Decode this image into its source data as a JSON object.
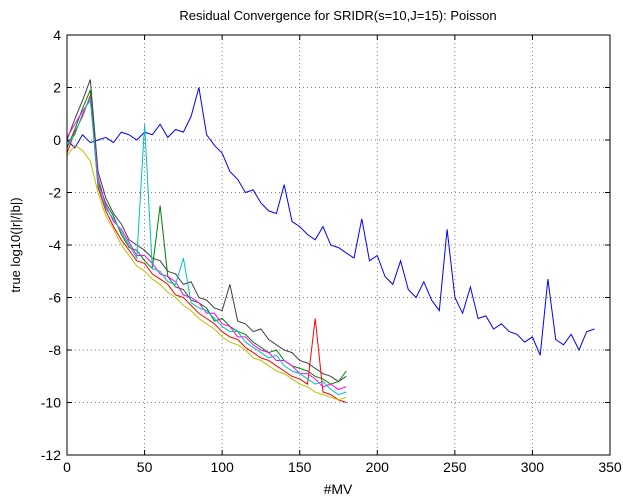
{
  "chart_data": {
    "type": "line",
    "title": "Residual Convergence for SRIDR(s=10,J=15): Poisson",
    "xlabel": "#MV",
    "ylabel": "true log10(|r|/|b|)",
    "xlim": [
      0,
      350
    ],
    "xticks": [
      0,
      50,
      100,
      150,
      200,
      250,
      300,
      350
    ],
    "ylim": [
      -12,
      4
    ],
    "yticks": [
      -12,
      -10,
      -8,
      -6,
      -4,
      -2,
      0,
      2,
      4
    ],
    "grid": true,
    "series": [
      {
        "color": "#0000ff",
        "x": [
          0,
          5,
          10,
          15,
          20,
          25,
          30,
          35,
          40,
          45,
          50,
          55,
          60,
          65,
          70,
          75,
          80,
          85,
          90,
          95,
          100,
          105,
          110,
          115,
          120,
          125,
          130,
          135,
          140,
          145,
          150,
          155,
          160,
          165,
          170,
          175,
          180,
          185,
          190,
          195,
          200,
          205,
          210,
          215,
          220,
          225,
          230,
          235,
          240,
          245,
          250,
          255,
          260,
          265,
          270,
          275,
          280,
          285,
          290,
          295,
          300,
          305,
          310,
          315,
          320,
          325,
          330,
          335,
          340
        ],
        "values": [
          0,
          -0.3,
          0.2,
          -0.1,
          0,
          0.1,
          -0.1,
          0.3,
          0.2,
          0,
          0.3,
          0.2,
          0.6,
          0.1,
          0.4,
          0.3,
          0.9,
          2.0,
          0.2,
          -0.2,
          -0.5,
          -1.2,
          -1.5,
          -2.0,
          -1.9,
          -2.4,
          -2.7,
          -2.8,
          -1.7,
          -3.1,
          -3.3,
          -3.6,
          -3.8,
          -3.3,
          -4.0,
          -4.1,
          -4.3,
          -4.5,
          -3.0,
          -4.6,
          -4.4,
          -5.2,
          -5.5,
          -4.6,
          -5.7,
          -6.0,
          -5.4,
          -6.1,
          -6.5,
          -3.4,
          -6.0,
          -6.6,
          -5.6,
          -6.8,
          -6.7,
          -7.2,
          -7.0,
          -7.3,
          -7.4,
          -7.7,
          -7.5,
          -8.2,
          -5.3,
          -7.6,
          -7.8,
          -7.4,
          -8.0,
          -7.3,
          -7.2
        ]
      },
      {
        "color": "#404040",
        "x": [
          0,
          5,
          10,
          15,
          20,
          25,
          30,
          35,
          40,
          45,
          50,
          55,
          60,
          65,
          70,
          75,
          80,
          85,
          90,
          95,
          100,
          105,
          110,
          115,
          120,
          125,
          130,
          135,
          140,
          145,
          150,
          155,
          160,
          165,
          170,
          175,
          180
        ],
        "values": [
          0,
          0.8,
          1.5,
          2.3,
          -1.2,
          -2.2,
          -2.8,
          -3.2,
          -3.8,
          -4.0,
          -4.2,
          -4.5,
          -4.6,
          -5.0,
          -5.1,
          -5.5,
          -5.4,
          -6.0,
          -6.1,
          -6.4,
          -6.5,
          -5.5,
          -6.9,
          -7.0,
          -7.3,
          -7.2,
          -7.6,
          -7.8,
          -8.0,
          -8.1,
          -8.4,
          -8.5,
          -8.7,
          -8.9,
          -9.0,
          -9.2,
          -9.0
        ]
      },
      {
        "color": "#008000",
        "x": [
          0,
          5,
          10,
          15,
          20,
          25,
          30,
          35,
          40,
          45,
          50,
          55,
          60,
          65,
          70,
          75,
          80,
          85,
          90,
          95,
          100,
          105,
          110,
          115,
          120,
          125,
          130,
          135,
          140,
          145,
          150,
          155,
          160,
          165,
          170,
          175,
          180
        ],
        "values": [
          -0.3,
          0.4,
          1.2,
          1.9,
          -1.6,
          -2.4,
          -2.9,
          -3.6,
          -4.1,
          -4.2,
          -4.6,
          -4.9,
          -2.5,
          -5.2,
          -5.6,
          -5.7,
          -6.1,
          -6.2,
          -6.4,
          -6.9,
          -6.8,
          -7.1,
          -7.3,
          -7.4,
          -7.7,
          -7.9,
          -8.1,
          -8.0,
          -8.4,
          -8.6,
          -8.7,
          -8.8,
          -9.0,
          -9.1,
          -9.3,
          -9.2,
          -8.8
        ]
      },
      {
        "color": "#ff0000",
        "x": [
          0,
          5,
          10,
          15,
          20,
          25,
          30,
          35,
          40,
          45,
          50,
          55,
          60,
          65,
          70,
          75,
          80,
          85,
          90,
          95,
          100,
          105,
          110,
          115,
          120,
          125,
          130,
          135,
          140,
          145,
          150,
          155,
          160,
          165,
          170,
          175,
          180
        ],
        "values": [
          -0.5,
          0.3,
          0.9,
          1.7,
          -1.8,
          -2.7,
          -3.3,
          -3.8,
          -4.2,
          -4.6,
          -4.7,
          -5.1,
          -5.3,
          -5.5,
          -5.9,
          -6.0,
          -6.3,
          -6.6,
          -6.8,
          -7.0,
          -7.3,
          -7.5,
          -7.6,
          -7.9,
          -8.1,
          -8.3,
          -8.4,
          -8.6,
          -8.8,
          -9.0,
          -9.1,
          -9.3,
          -6.8,
          -9.6,
          -9.7,
          -9.9,
          -10.0
        ]
      },
      {
        "color": "#ff00ff",
        "x": [
          0,
          5,
          10,
          15,
          20,
          25,
          30,
          35,
          40,
          45,
          50,
          55,
          60,
          65,
          70,
          75,
          80,
          85,
          90,
          95,
          100,
          105,
          110,
          115,
          120,
          125,
          130,
          135,
          140,
          145,
          150,
          155,
          160,
          165,
          170,
          175,
          180
        ],
        "values": [
          0.1,
          0.6,
          1.1,
          1.5,
          -1.4,
          -2.5,
          -3.1,
          -3.4,
          -3.9,
          -4.4,
          -4.4,
          -4.7,
          -5.1,
          -5.2,
          -5.4,
          -5.9,
          -6.0,
          -6.2,
          -6.6,
          -6.6,
          -7.0,
          -7.1,
          -7.5,
          -7.5,
          -7.8,
          -8.0,
          -8.1,
          -8.4,
          -8.4,
          -8.6,
          -8.9,
          -8.9,
          -9.1,
          -9.4,
          -9.3,
          -9.5,
          -9.4
        ]
      },
      {
        "color": "#00bfbf",
        "x": [
          0,
          5,
          10,
          15,
          20,
          25,
          30,
          35,
          40,
          45,
          50,
          55,
          60,
          65,
          70,
          75,
          80,
          85,
          90,
          95,
          100,
          105,
          110,
          115,
          120,
          125,
          130,
          135,
          140,
          145,
          150,
          155,
          160,
          165,
          170,
          175,
          180
        ],
        "values": [
          -0.2,
          0.2,
          1.0,
          1.6,
          -1.7,
          -2.6,
          -3.0,
          -3.5,
          -4.0,
          -4.5,
          0.6,
          -4.9,
          -5.0,
          -5.4,
          -5.5,
          -4.5,
          -6.2,
          -6.4,
          -6.5,
          -6.8,
          -7.1,
          -7.3,
          -7.3,
          -7.7,
          -7.9,
          -8.1,
          -8.3,
          -8.2,
          -8.6,
          -8.8,
          -8.9,
          -9.1,
          -9.3,
          -9.2,
          -9.5,
          -9.7,
          -9.6
        ]
      },
      {
        "color": "#bfbf00",
        "x": [
          0,
          5,
          10,
          15,
          20,
          25,
          30,
          35,
          40,
          45,
          50,
          55,
          60,
          65,
          70,
          75,
          80,
          85,
          90,
          95,
          100,
          105,
          110,
          115,
          120,
          125,
          130,
          135,
          140,
          145,
          150,
          155,
          160,
          165,
          170,
          175,
          180
        ],
        "values": [
          -0.6,
          -0.2,
          -0.4,
          -0.8,
          -2.0,
          -2.9,
          -3.4,
          -4.0,
          -4.4,
          -4.8,
          -5.0,
          -5.3,
          -5.5,
          -5.8,
          -6.0,
          -6.3,
          -6.5,
          -6.8,
          -7.0,
          -7.2,
          -7.5,
          -7.7,
          -7.8,
          -8.0,
          -8.3,
          -8.4,
          -8.6,
          -8.8,
          -8.9,
          -9.1,
          -9.3,
          -9.4,
          -9.6,
          -9.7,
          -9.8,
          -9.9,
          -9.8
        ]
      }
    ]
  }
}
